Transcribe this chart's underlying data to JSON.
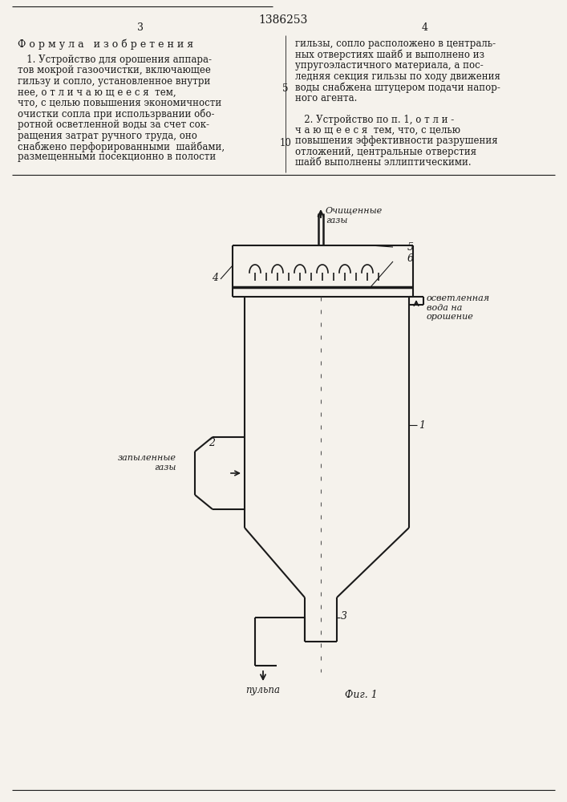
{
  "bg_color": "#f5f2ec",
  "line_color": "#1a1a1a",
  "text_color": "#1a1a1a",
  "title": "1386253",
  "page_left": "3",
  "page_right": "4",
  "formula_title": "Ф о р м у л а   и з о б р е т е н и я",
  "left_text_lines": [
    "   1. Устройство для орошения аппара-",
    "тов мокрой газоочистки, включающее",
    "гильзу и сопло, установленное внутри",
    "нее, о т л и ч а ю щ е е с я  тем,",
    "что, с целью повышения экономичности",
    "очистки сопла при использрвании обо-",
    "ротной осветленной воды за счет сок-",
    "ращения затрат ручного труда, оно",
    "снабжено перфорированными  шайбами,",
    "размещенными посекционно в полости"
  ],
  "right_text_lines": [
    "гильзы, сопло расположено в централь-",
    "ных отверстиях шайб и выполнено из",
    "упругоэластичного материала, а пос-",
    "ледняя секция гильзы по ходу движения",
    "воды снабжена штуцером подачи напор-",
    "ного агента.",
    "",
    "   2. Устройство по п. 1, о т л и -",
    "ч а ю щ е е с я  тем, что, с целью",
    "повышения эффективности разрушения",
    "отложений, центральные отверстия",
    "шайб выполнены эллиптическими."
  ],
  "line_number_5": "5",
  "line_number_10": "10",
  "fig_caption": "Фиг. 1",
  "label_1": "1",
  "label_2": "2",
  "label_3": "3",
  "label_4": "4",
  "label_5": "5",
  "label_6": "6",
  "label_ochistka": "Очищенные\nгазы",
  "label_zapylennye": "запыленные\nгазы",
  "label_osvyetlennaya": "осветленная\nвода на\nорошение",
  "label_pulpa": "пульпа"
}
